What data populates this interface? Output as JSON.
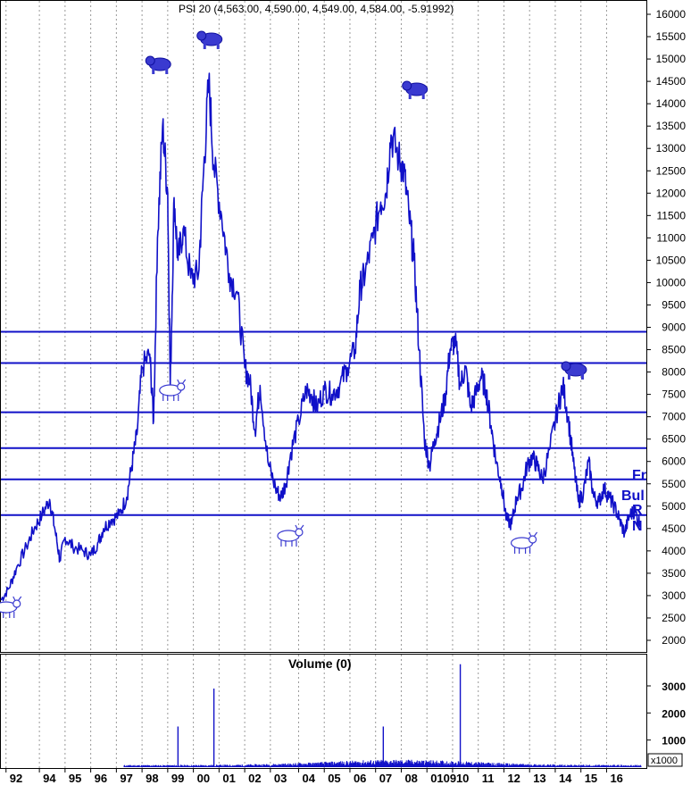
{
  "chart_data": {
    "type": "line",
    "title": "PSI 20 (4,563.00, 4,590.00, 4,549.00, 4,584.00, -5.91992)",
    "price": {
      "ylim": [
        1500,
        16400
      ],
      "yticks": [
        2000,
        2500,
        3000,
        3500,
        4000,
        4500,
        5000,
        5500,
        6000,
        6500,
        7000,
        7500,
        8000,
        8500,
        9000,
        9500,
        10000,
        10500,
        11000,
        11500,
        12000,
        12500,
        13000,
        13500,
        14000,
        14500,
        15000,
        15500,
        16000
      ],
      "series": [
        {
          "x": [
            1992.0,
            1992.3,
            1992.6,
            1993.0,
            1993.3,
            1993.6,
            1993.9,
            1994.1,
            1994.3,
            1994.5,
            1994.8,
            1995.2,
            1995.5,
            1995.8,
            1996.0,
            1996.3,
            1996.6,
            1996.9,
            1997.1,
            1997.3,
            1997.5,
            1997.8,
            1997.95,
            1998.1,
            1998.3,
            1998.5,
            1998.6,
            1998.75,
            1998.9,
            1999.1,
            1999.4,
            1999.7,
            1999.9,
            2000.1,
            2000.3,
            2000.6,
            2000.9,
            2001.2,
            2001.5,
            2001.7,
            2001.9,
            2002.1,
            2002.4,
            2002.7,
            2002.9,
            2003.1,
            2003.3,
            2003.6,
            2003.9,
            2004.1,
            2004.3,
            2004.6,
            2004.9,
            2005.2,
            2005.5,
            2005.8,
            2006.0,
            2006.2,
            2006.5,
            2006.8,
            2007.0,
            2007.2,
            2007.5,
            2007.7,
            2007.9,
            2008.1,
            2008.3,
            2008.5,
            2008.7,
            2008.9,
            2009.1,
            2009.3,
            2009.5,
            2009.7,
            2009.9,
            2010.1,
            2010.3,
            2010.5,
            2010.7,
            2010.9,
            2011.1,
            2011.3,
            2011.5,
            2011.7,
            2011.9,
            2012.1,
            2012.3,
            2012.5,
            2012.7,
            2012.9,
            2013.1,
            2013.4,
            2013.7,
            2013.9,
            2014.1,
            2014.3,
            2014.5,
            2014.7,
            2014.9,
            2015.1,
            2015.3,
            2015.5,
            2015.7,
            2015.9,
            2016.1,
            2016.3,
            2016.5,
            2016.7,
            2016.9
          ],
          "y": [
            2900,
            3150,
            3600,
            4100,
            4500,
            4800,
            5150,
            4500,
            3800,
            4300,
            4100,
            4000,
            3900,
            4200,
            4500,
            4700,
            4800,
            5200,
            5900,
            6600,
            8100,
            8400,
            6900,
            11000,
            13500,
            12000,
            7700,
            11900,
            10500,
            11200,
            10100,
            10200,
            12500,
            14500,
            12600,
            11500,
            10200,
            9800,
            8100,
            7800,
            6700,
            7700,
            6000,
            5400,
            5200,
            5500,
            6200,
            6900,
            7600,
            7500,
            7200,
            7600,
            7500,
            7700,
            8100,
            8500,
            9900,
            10200,
            11000,
            11800,
            12000,
            13300,
            12800,
            12500,
            11500,
            10500,
            8500,
            6500,
            5900,
            6500,
            6900,
            7400,
            8500,
            8700,
            7700,
            8100,
            7200,
            7500,
            7900,
            7600,
            6800,
            6000,
            5500,
            4700,
            4600,
            5200,
            5400,
            5900,
            6100,
            5900,
            5600,
            6300,
            7200,
            7700,
            7000,
            6000,
            5100,
            5300,
            6000,
            5200,
            5100,
            5400,
            5200,
            5000,
            4700,
            4400,
            4800,
            4900,
            4590
          ]
        }
      ],
      "hlines": [
        8900,
        8200,
        7100,
        6300,
        5600,
        4800
      ],
      "bear_labels": [
        1998.2,
        2000.2,
        2008.2,
        2014.4
      ],
      "bull_labels": [
        1992.2,
        1998.6,
        2003.2,
        2012.3
      ]
    },
    "volume": {
      "title": "Volume (0)",
      "ylim": [
        0,
        3900
      ],
      "yticks": [
        1000,
        2000,
        3000
      ],
      "unit": "x1000",
      "spikes": [
        {
          "x": 1998.9,
          "value": 1500
        },
        {
          "x": 2000.3,
          "value": 2900
        },
        {
          "x": 2006.9,
          "value": 1500
        },
        {
          "x": 2009.9,
          "value": 3800
        }
      ]
    },
    "xaxis": {
      "labels": [
        "92",
        "94",
        "95",
        "96",
        "97",
        "98",
        "99",
        "00",
        "01",
        "02",
        "03",
        "04",
        "05",
        "06",
        "07",
        "08",
        "0109",
        "10",
        "11",
        "12",
        "13",
        "14",
        "15",
        "16"
      ],
      "positions": [
        1992.2,
        1993.5,
        1994.5,
        1995.5,
        1996.5,
        1997.5,
        1998.5,
        1999.5,
        2000.5,
        2001.5,
        2002.5,
        2003.6,
        2004.6,
        2005.6,
        2006.6,
        2007.6,
        2008.6,
        2009.6,
        2010.6,
        2011.6,
        2012.6,
        2013.6,
        2014.6,
        2015.6
      ]
    },
    "annotations": [
      "Fr",
      "Bul",
      "R",
      "N"
    ]
  }
}
